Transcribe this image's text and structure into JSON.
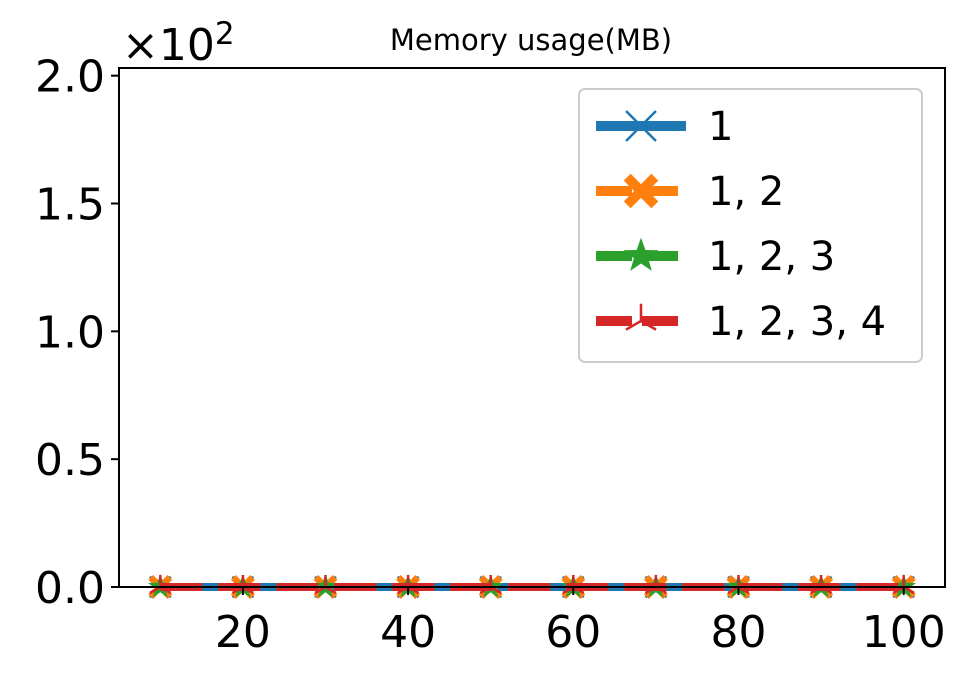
{
  "chart_data": {
    "type": "line",
    "title": "Memory usage(MB)",
    "xlabel": "",
    "ylabel": "",
    "y_offset_text": {
      "base": "×10",
      "exponent": "2"
    },
    "x": [
      10,
      20,
      30,
      40,
      50,
      60,
      70,
      80,
      90,
      100
    ],
    "xlim": [
      5,
      105
    ],
    "ylim": [
      0,
      2.03
    ],
    "x_ticks": [
      20,
      40,
      60,
      80,
      100
    ],
    "x_tick_labels": [
      "20",
      "40",
      "60",
      "80",
      "100"
    ],
    "y_ticks": [
      0.0,
      0.5,
      1.0,
      1.5,
      2.0
    ],
    "y_tick_labels": [
      "0.0",
      "0.5",
      "1.0",
      "1.5",
      "2.0"
    ],
    "grid": false,
    "legend_position": "top-right",
    "series": [
      {
        "name": "1",
        "color": "#1f77b4",
        "marker": "x",
        "linestyle": "solid",
        "values": [
          0,
          0,
          0,
          0,
          0,
          0,
          0,
          0,
          0,
          0
        ]
      },
      {
        "name": "1, 2",
        "color": "#ff7f0e",
        "marker": "X",
        "linestyle": "dashed",
        "values": [
          0,
          0,
          0,
          0,
          0,
          0,
          0,
          0,
          0,
          0
        ]
      },
      {
        "name": "1, 2, 3",
        "color": "#2ca02c",
        "marker": "star",
        "linestyle": "dashed",
        "values": [
          0,
          0,
          0,
          0,
          0,
          0,
          0,
          0,
          0,
          0
        ]
      },
      {
        "name": "1, 2, 3, 4",
        "color": "#d62728",
        "marker": "tri",
        "linestyle": "dashed",
        "values": [
          0,
          0,
          0,
          0,
          0,
          0,
          0,
          0,
          0,
          0
        ]
      }
    ]
  }
}
